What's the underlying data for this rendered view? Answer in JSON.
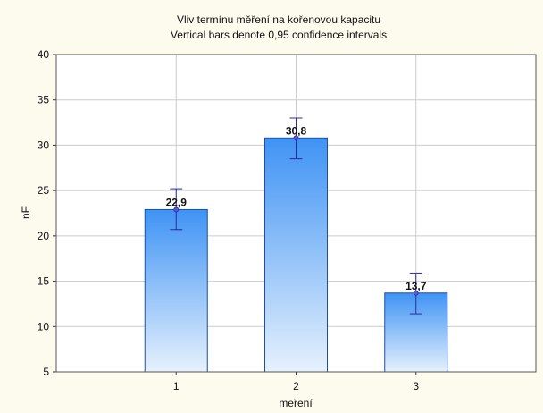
{
  "chart_data": {
    "type": "bar",
    "title": "Vliv termínu měření na kořenovou kapacitu",
    "subtitle": "Vertical bars denote 0,95 confidence intervals",
    "xlabel": "meření",
    "ylabel": "nF",
    "categories": [
      "1",
      "2",
      "3"
    ],
    "values": [
      22.9,
      30.8,
      13.7
    ],
    "value_labels": [
      "22,9",
      "30,8",
      "13,7"
    ],
    "ci_lower": [
      20.7,
      28.5,
      11.4
    ],
    "ci_upper": [
      25.2,
      33.0,
      15.9
    ],
    "ylim": [
      5,
      40
    ],
    "yticks": [
      5,
      10,
      15,
      20,
      25,
      30,
      35,
      40
    ],
    "grid": true,
    "colors": {
      "bar_top": "#3f93f4",
      "bar_bottom": "#e6f1fd",
      "bar_stroke": "#1c4fa8",
      "error_bar": "#2a2a9e",
      "grid": "#cccccc",
      "plot_bg": "#ffffff",
      "page_bg": "#fdfaee"
    }
  }
}
